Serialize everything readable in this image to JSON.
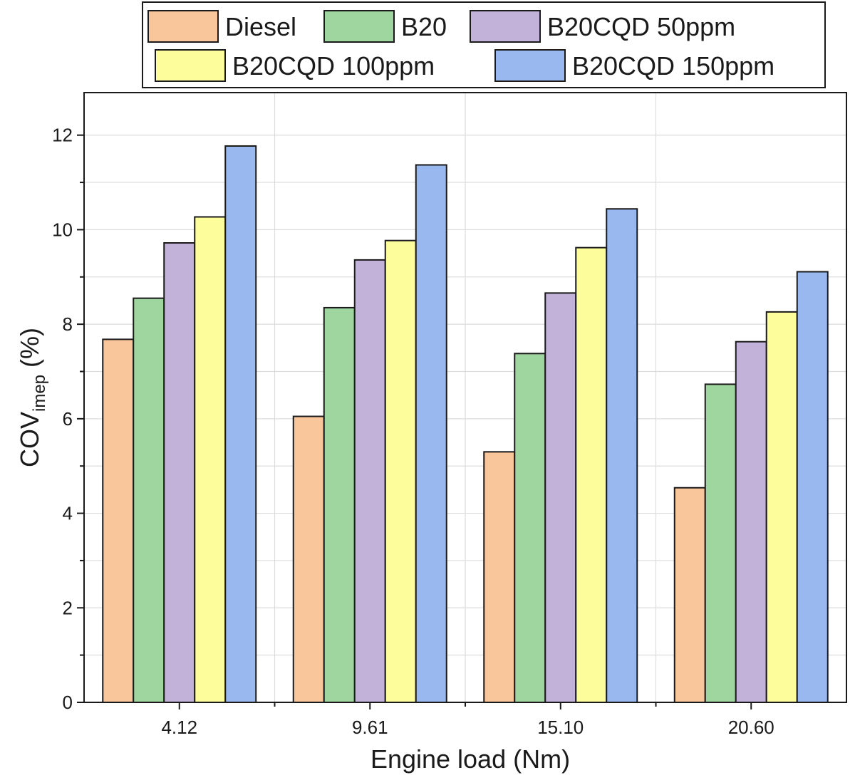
{
  "chart_data": {
    "type": "bar",
    "title": "",
    "xlabel": "Engine load (Nm)",
    "ylabel_main": "COV",
    "ylabel_sub": "imep",
    "ylabel_unit": " (%)",
    "categories": [
      "4.12",
      "9.61",
      "15.10",
      "20.60"
    ],
    "ylim": [
      0,
      12.9
    ],
    "yticks": [
      0,
      2,
      4,
      6,
      8,
      10,
      12
    ],
    "grid": true,
    "legend_position": "top",
    "series": [
      {
        "name": "Diesel",
        "color": "#f9c59a",
        "values": [
          7.68,
          6.05,
          5.3,
          4.54
        ]
      },
      {
        "name": "B20",
        "color": "#9fd69f",
        "values": [
          8.55,
          8.35,
          7.38,
          6.73
        ]
      },
      {
        "name": "B20CQD 50ppm",
        "color": "#c2b1d8",
        "values": [
          9.72,
          9.36,
          8.66,
          7.63
        ]
      },
      {
        "name": "B20CQD 100ppm",
        "color": "#fdfd9b",
        "values": [
          10.27,
          9.77,
          9.62,
          8.26
        ]
      },
      {
        "name": "B20CQD 150ppm",
        "color": "#99b8f0",
        "values": [
          11.77,
          11.37,
          10.44,
          9.11
        ]
      }
    ]
  }
}
